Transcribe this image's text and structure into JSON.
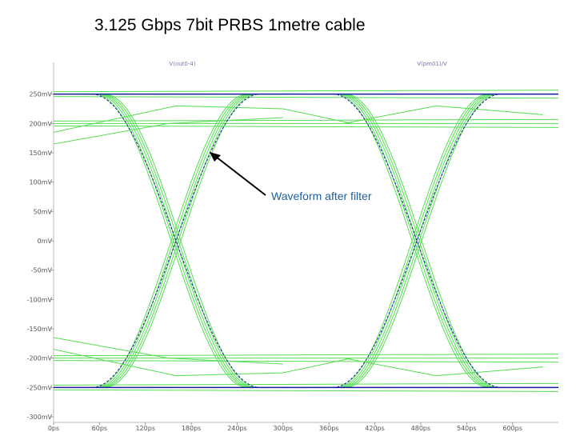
{
  "title": "3.125 Gbps 7bit PRBS 1metre cable",
  "chart_data": {
    "type": "line",
    "title": "3.125 Gbps 7bit PRBS 1metre cable",
    "xlabel": "",
    "ylabel": "",
    "xlim": [
      0,
      660
    ],
    "ylim": [
      -300,
      300
    ],
    "x_ticks": [
      "0ps",
      "60ps",
      "120ps",
      "180ps",
      "240ps",
      "300ps",
      "360ps",
      "420ps",
      "480ps",
      "540ps",
      "600ps"
    ],
    "y_ticks": [
      "250mV",
      "200mV",
      "150mV",
      "100mV",
      "50mV",
      "0mV",
      "-50mV",
      "-100mV",
      "-150mV",
      "-200mV",
      "-250mV",
      "-300mV"
    ],
    "y_tick_values": [
      250,
      200,
      150,
      100,
      50,
      0,
      -50,
      -100,
      -150,
      -200,
      -250,
      -300
    ],
    "x_tick_values": [
      0,
      60,
      120,
      180,
      240,
      300,
      360,
      420,
      480,
      540,
      600
    ],
    "series": [
      {
        "name": "V(out0-4)",
        "color": "#55dd55",
        "description_free": true,
        "crossings_ps": [
          160,
          475
        ],
        "levels_mV": [
          250,
          200,
          -200,
          -250
        ]
      },
      {
        "name": "V(pm01)/V",
        "color": "#1a1aa0",
        "crossings_ps": [
          160,
          475
        ],
        "levels_mV": [
          250,
          -250
        ]
      }
    ],
    "annotation": "Waveform after filter",
    "grid": false
  },
  "annotation_text": "Waveform after filter",
  "legend": [
    "V(out0-4)",
    "V(pm01)/V"
  ]
}
